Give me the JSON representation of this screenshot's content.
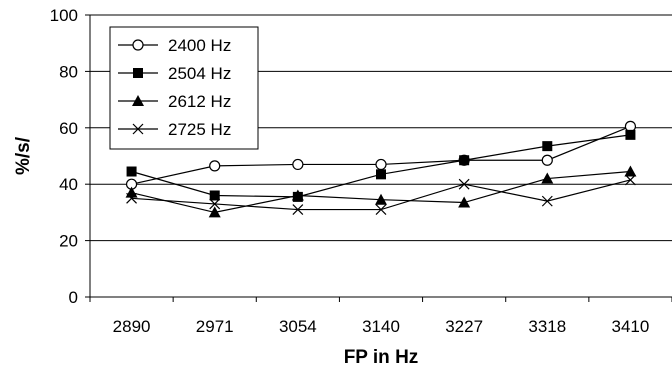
{
  "chart_data": {
    "type": "line",
    "categories": [
      "2890",
      "2971",
      "3054",
      "3140",
      "3227",
      "3318",
      "3410"
    ],
    "xlabel": "FP in Hz",
    "ylabel": "%/s/",
    "ylim": [
      0,
      100
    ],
    "yticks": [
      0,
      20,
      40,
      60,
      80,
      100
    ],
    "grid": "horizontal",
    "legend_position": "top-left",
    "series": [
      {
        "name": "2400 Hz",
        "marker": "open-circle",
        "values": [
          40,
          46.5,
          47,
          47,
          48.5,
          48.5,
          60.5
        ]
      },
      {
        "name": "2504 Hz",
        "marker": "filled-square",
        "values": [
          44.5,
          36,
          35.5,
          43.5,
          48.5,
          53.5,
          57.5
        ]
      },
      {
        "name": "2612 Hz",
        "marker": "filled-triangle",
        "values": [
          37,
          30,
          36,
          34.5,
          33.5,
          42,
          44.5
        ]
      },
      {
        "name": "2725 Hz",
        "marker": "x",
        "values": [
          35,
          33,
          31,
          31,
          40,
          34,
          41.5
        ]
      }
    ]
  }
}
